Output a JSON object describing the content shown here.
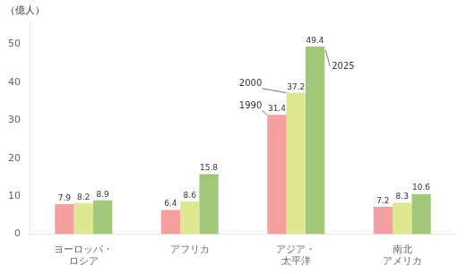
{
  "chart_data": {
    "type": "bar",
    "ylabel": "（億人）",
    "categories": [
      "ヨーロッパ・\nロシア",
      "アフリカ",
      "アジア・\n太平洋",
      "南北\nアメリカ"
    ],
    "series": [
      {
        "name": "1990",
        "color": "#f4a0a0",
        "values": [
          7.9,
          6.4,
          31.4,
          7.2
        ]
      },
      {
        "name": "2000",
        "color": "#dde890",
        "values": [
          8.2,
          8.6,
          37.2,
          8.3
        ]
      },
      {
        "name": "2025",
        "color": "#a0c878",
        "values": [
          8.9,
          15.8,
          49.4,
          10.6
        ]
      }
    ],
    "ylim": [
      0,
      56
    ],
    "yticks": [
      0,
      10,
      20,
      30,
      40,
      50
    ],
    "grid": false,
    "data_labels": true,
    "annotations": [
      {
        "text": "1990",
        "series": "1990",
        "category": "アジア・\n太平洋"
      },
      {
        "text": "2000",
        "series": "2000",
        "category": "アジア・\n太平洋"
      },
      {
        "text": "2025",
        "series": "2025",
        "category": "アジア・\n太平洋"
      }
    ]
  }
}
